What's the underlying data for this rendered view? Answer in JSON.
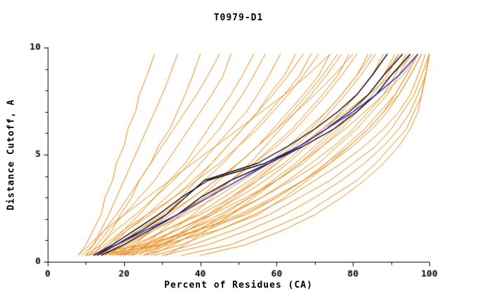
{
  "chart_data": {
    "type": "line",
    "title": "T0979-D1",
    "xlabel": "Percent of Residues (CA)",
    "ylabel": "Distance Cutoff, A",
    "xlim": [
      0,
      100
    ],
    "ylim": [
      0,
      10
    ],
    "xticks_major": [
      0,
      20,
      40,
      60,
      80,
      100
    ],
    "xticks_minor": [
      10,
      30,
      50,
      70,
      90
    ],
    "yticks_major": [
      0,
      5,
      10
    ],
    "yticks_minor": [
      1,
      2,
      3,
      4,
      6,
      7,
      8,
      9
    ],
    "grid": false,
    "legend": "none",
    "colors": {
      "background_model": "#e8860d",
      "highlight_black": "#000000",
      "highlight_blue": "#2a20c8"
    },
    "y_grid": [
      0.3,
      0.8,
      1.5,
      2.2,
      3.0,
      3.8,
      4.6,
      5.4,
      6.2,
      7.0,
      7.8,
      8.7,
      9.7
    ],
    "orange_series_x": [
      [
        8,
        10,
        12,
        14,
        15,
        17,
        18,
        20,
        21,
        23,
        24,
        26,
        28
      ],
      [
        10,
        12,
        14,
        16,
        18,
        20,
        22,
        24,
        26,
        28,
        30,
        32,
        34
      ],
      [
        12,
        14,
        17,
        19,
        22,
        24,
        27,
        29,
        32,
        34,
        36,
        38,
        40
      ],
      [
        9,
        12,
        15,
        18,
        21,
        24,
        27,
        30,
        33,
        36,
        39,
        42,
        45
      ],
      [
        11,
        13,
        16,
        20,
        24,
        28,
        31,
        34,
        37,
        40,
        43,
        46,
        48
      ],
      [
        13,
        16,
        20,
        24,
        28,
        32,
        36,
        39,
        42,
        45,
        48,
        51,
        54
      ],
      [
        10,
        14,
        18,
        23,
        28,
        33,
        37,
        41,
        45,
        48,
        51,
        54,
        57
      ],
      [
        14,
        17,
        21,
        26,
        31,
        36,
        40,
        44,
        48,
        52,
        55,
        58,
        61
      ],
      [
        12,
        16,
        21,
        27,
        33,
        38,
        43,
        47,
        51,
        55,
        58,
        62,
        65
      ],
      [
        15,
        19,
        24,
        30,
        36,
        41,
        46,
        50,
        54,
        58,
        62,
        66,
        69
      ],
      [
        11,
        15,
        20,
        26,
        33,
        39,
        45,
        50,
        55,
        59,
        63,
        67,
        71
      ],
      [
        16,
        20,
        26,
        32,
        38,
        44,
        50,
        55,
        59,
        63,
        67,
        71,
        74
      ],
      [
        13,
        18,
        24,
        31,
        38,
        44,
        50,
        55,
        60,
        64,
        68,
        72,
        76
      ],
      [
        17,
        22,
        28,
        35,
        42,
        48,
        54,
        59,
        64,
        68,
        72,
        76,
        79
      ],
      [
        14,
        19,
        26,
        34,
        41,
        48,
        54,
        60,
        65,
        69,
        73,
        77,
        81
      ],
      [
        18,
        24,
        31,
        39,
        46,
        53,
        59,
        64,
        69,
        73,
        77,
        81,
        84
      ],
      [
        15,
        21,
        28,
        36,
        44,
        51,
        58,
        63,
        68,
        73,
        77,
        81,
        85
      ],
      [
        19,
        26,
        34,
        42,
        50,
        57,
        63,
        68,
        73,
        77,
        81,
        85,
        88
      ],
      [
        16,
        23,
        31,
        40,
        48,
        55,
        62,
        67,
        72,
        77,
        81,
        85,
        89
      ],
      [
        20,
        28,
        37,
        45,
        53,
        60,
        66,
        71,
        76,
        80,
        84,
        88,
        91
      ],
      [
        17,
        25,
        34,
        43,
        52,
        60,
        67,
        72,
        77,
        81,
        85,
        89,
        92
      ],
      [
        21,
        30,
        39,
        48,
        56,
        63,
        69,
        75,
        80,
        84,
        88,
        91,
        94
      ],
      [
        18,
        27,
        37,
        47,
        56,
        64,
        71,
        76,
        81,
        85,
        89,
        92,
        95
      ],
      [
        22,
        32,
        42,
        51,
        60,
        67,
        73,
        79,
        84,
        88,
        91,
        94,
        97
      ],
      [
        19,
        29,
        40,
        50,
        59,
        67,
        74,
        80,
        85,
        89,
        92,
        95,
        98
      ],
      [
        25,
        35,
        45,
        54,
        63,
        70,
        77,
        83,
        88,
        92,
        95,
        97,
        99
      ],
      [
        28,
        38,
        49,
        58,
        66,
        74,
        80,
        86,
        90,
        93,
        96,
        98,
        100
      ],
      [
        30,
        42,
        53,
        62,
        70,
        77,
        83,
        88,
        92,
        95,
        97,
        99,
        100
      ],
      [
        35,
        48,
        58,
        67,
        74,
        81,
        86,
        90,
        94,
        96,
        98,
        99,
        100
      ],
      [
        40,
        52,
        62,
        70,
        77,
        83,
        88,
        92,
        95,
        97,
        98,
        99,
        100
      ],
      [
        12,
        30,
        45,
        55,
        62,
        68,
        74,
        79,
        84,
        88,
        92,
        95,
        98
      ],
      [
        10,
        25,
        40,
        52,
        60,
        67,
        73,
        78,
        83,
        87,
        91,
        94,
        97
      ],
      [
        20,
        23,
        27,
        31,
        35,
        39,
        43,
        47,
        51,
        55,
        59,
        63,
        67
      ],
      [
        24,
        28,
        33,
        38,
        43,
        48,
        53,
        57,
        61,
        65,
        69,
        73,
        77
      ],
      [
        26,
        31,
        37,
        43,
        49,
        55,
        60,
        65,
        70,
        74,
        78,
        82,
        86
      ],
      [
        8,
        11,
        15,
        20,
        26,
        32,
        38,
        44,
        50,
        56,
        62,
        68,
        74
      ],
      [
        22,
        26,
        30,
        35,
        40,
        45,
        50,
        55,
        60,
        65,
        70,
        75,
        80
      ],
      [
        27,
        33,
        40,
        46,
        53,
        59,
        65,
        70,
        75,
        80,
        84,
        88,
        92
      ],
      [
        31,
        36,
        42,
        48,
        54,
        60,
        66,
        72,
        78,
        83,
        88,
        93,
        97
      ],
      [
        25,
        30,
        36,
        42,
        48,
        54,
        60,
        66,
        72,
        78,
        84,
        90,
        96
      ]
    ],
    "black_series_x": [
      [
        13,
        18,
        25,
        31,
        36,
        41,
        55,
        63,
        70,
        76,
        81,
        85,
        89
      ],
      [
        12,
        17,
        23,
        29,
        35,
        42,
        57,
        66,
        73,
        79,
        84,
        88,
        93
      ],
      [
        14,
        20,
        27,
        34,
        40,
        48,
        58,
        67,
        75,
        81,
        86,
        90,
        95
      ]
    ],
    "blue_series_x": [
      [
        12,
        18,
        26,
        34,
        42,
        50,
        58,
        66,
        73,
        80,
        86,
        92,
        97
      ]
    ]
  }
}
